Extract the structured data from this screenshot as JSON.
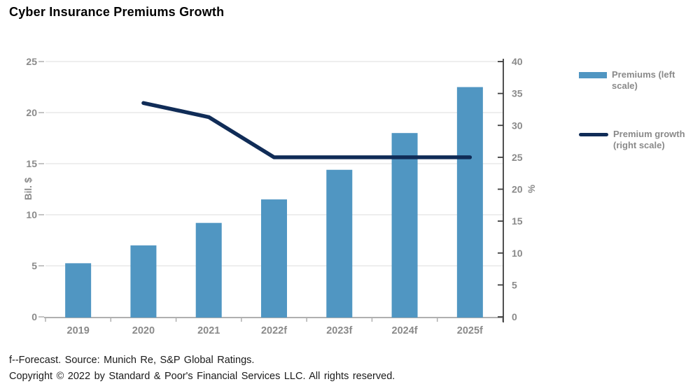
{
  "title": "Cyber Insurance Premiums Growth",
  "chart_data": {
    "type": "bar",
    "subtype": "bar-and-line-dual-axis",
    "categories": [
      "2019",
      "2020",
      "2021",
      "2022f",
      "2023f",
      "2024f",
      "2025f"
    ],
    "series": [
      {
        "name": "Premiums (left scale)",
        "type": "bar",
        "axis": "left",
        "values": [
          5.25,
          7.0,
          9.2,
          11.5,
          14.4,
          18.0,
          22.5
        ]
      },
      {
        "name": "Premium growth (right scale)",
        "type": "line",
        "axis": "right",
        "values": [
          null,
          33.5,
          31.3,
          25,
          25,
          25,
          25
        ]
      }
    ],
    "left_axis": {
      "label": "Bil. $",
      "min": 0,
      "max": 25,
      "ticks": [
        0,
        5,
        10,
        15,
        20,
        25
      ]
    },
    "right_axis": {
      "label": "%",
      "min": 0,
      "max": 40,
      "ticks": [
        0,
        5,
        10,
        15,
        20,
        25,
        30,
        35,
        40
      ]
    },
    "grid": true,
    "legend_position": "right"
  },
  "legend": {
    "items": [
      {
        "label": "Premiums (left scale)",
        "swatch": "bar-swatch"
      },
      {
        "label": "Premium growth (right scale)",
        "swatch": "line-swatch"
      }
    ]
  },
  "footer": {
    "line1": "f--Forecast. Source: Munich Re, S&P Global Ratings.",
    "line2": "Copyright © 2022 by Standard & Poor's Financial Services LLC. All rights reserved."
  },
  "colors": {
    "bar": "#5096c2",
    "line": "#102c57",
    "axis_text": "#8a8a8a",
    "gridline": "#e9e9e9",
    "bottom_axis": "#b0b0b0",
    "right_axis": "#3d3d3d",
    "title": "#000000",
    "footer": "#1a1a1a"
  }
}
